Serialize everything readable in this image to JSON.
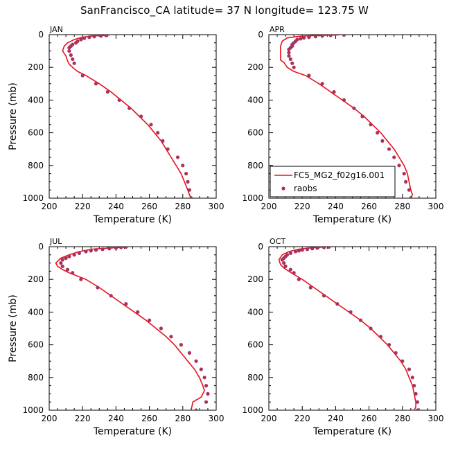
{
  "title": "SanFrancisco_CA  latitude= 37 N longitude= 123.75 W",
  "colors": {
    "model": "#e8101c",
    "obs": "#a8325e"
  },
  "legend": {
    "model_label": "FC5_MG2_f02g16.001",
    "obs_label": "raobs",
    "placement": "bottom-left of APR panel"
  },
  "chart_data": [
    {
      "type": "line",
      "panel": "JAN",
      "xlabel": "Temperature (K)",
      "ylabel": "Pressure (mb)",
      "xlim": [
        200,
        300
      ],
      "ylim": [
        1000,
        0
      ],
      "xticks": [
        200,
        220,
        240,
        260,
        280,
        300
      ],
      "yticks": [
        0,
        200,
        400,
        600,
        800,
        1000
      ],
      "series": [
        {
          "name": "FC5_MG2_f02g16.001",
          "style": "line",
          "points": [
            [
              236,
              3
            ],
            [
              226,
              8
            ],
            [
              220,
              15
            ],
            [
              215,
              30
            ],
            [
              211,
              50
            ],
            [
              209,
              70
            ],
            [
              208,
              100
            ],
            [
              210,
              130
            ],
            [
              211,
              160
            ],
            [
              212,
              180
            ],
            [
              214,
              200
            ],
            [
              217,
              225
            ],
            [
              222,
              250
            ],
            [
              230,
              300
            ],
            [
              237,
              350
            ],
            [
              243,
              400
            ],
            [
              249,
              450
            ],
            [
              254,
              500
            ],
            [
              259,
              550
            ],
            [
              263,
              600
            ],
            [
              267,
              650
            ],
            [
              270,
              700
            ],
            [
              273,
              750
            ],
            [
              276,
              800
            ],
            [
              279,
              850
            ],
            [
              281,
              900
            ],
            [
              283,
              950
            ],
            [
              284,
              980
            ],
            [
              285,
              1000
            ]
          ]
        },
        {
          "name": "raobs",
          "style": "markers",
          "points": [
            [
              234,
              5
            ],
            [
              231,
              8
            ],
            [
              227,
              12
            ],
            [
              224,
              16
            ],
            [
              221,
              22
            ],
            [
              219,
              30
            ],
            [
              217,
              40
            ],
            [
              216,
              50
            ],
            [
              214,
              60
            ],
            [
              213,
              70
            ],
            [
              212,
              80
            ],
            [
              212,
              100
            ],
            [
              213,
              125
            ],
            [
              214,
              150
            ],
            [
              215,
              175
            ],
            [
              220,
              250
            ],
            [
              228,
              300
            ],
            [
              235,
              350
            ],
            [
              242,
              400
            ],
            [
              248,
              450
            ],
            [
              255,
              500
            ],
            [
              261,
              550
            ],
            [
              265,
              600
            ],
            [
              268,
              650
            ],
            [
              271,
              700
            ],
            [
              277,
              750
            ],
            [
              280,
              800
            ],
            [
              282,
              850
            ],
            [
              283,
              900
            ],
            [
              284,
              950
            ],
            [
              285,
              1000
            ]
          ]
        }
      ]
    },
    {
      "type": "line",
      "panel": "APR",
      "xlabel": "Temperature (K)",
      "ylabel": "",
      "xlim": [
        200,
        300
      ],
      "ylim": [
        1000,
        0
      ],
      "xticks": [
        200,
        220,
        240,
        260,
        280,
        300
      ],
      "yticks": [
        0,
        200,
        400,
        600,
        800,
        1000
      ],
      "series": [
        {
          "name": "FC5_MG2_f02g16.001",
          "style": "line",
          "points": [
            [
              242,
              2
            ],
            [
              228,
              5
            ],
            [
              218,
              10
            ],
            [
              211,
              20
            ],
            [
              208,
              40
            ],
            [
              207,
              70
            ],
            [
              207,
              100
            ],
            [
              207,
              130
            ],
            [
              207,
              155
            ],
            [
              209,
              170
            ],
            [
              211,
              200
            ],
            [
              215,
              225
            ],
            [
              222,
              250
            ],
            [
              230,
              300
            ],
            [
              237,
              350
            ],
            [
              244,
              400
            ],
            [
              251,
              450
            ],
            [
              257,
              500
            ],
            [
              262,
              550
            ],
            [
              267,
              600
            ],
            [
              271,
              650
            ],
            [
              275,
              700
            ],
            [
              278,
              750
            ],
            [
              281,
              800
            ],
            [
              283,
              850
            ],
            [
              284,
              900
            ],
            [
              285,
              950
            ],
            [
              286,
              980
            ],
            [
              285,
              1000
            ]
          ]
        },
        {
          "name": "raobs",
          "style": "markers",
          "points": [
            [
              245,
              2
            ],
            [
              237,
              5
            ],
            [
              232,
              8
            ],
            [
              228,
              12
            ],
            [
              224,
              16
            ],
            [
              221,
              20
            ],
            [
              219,
              25
            ],
            [
              217,
              30
            ],
            [
              216,
              40
            ],
            [
              215,
              50
            ],
            [
              214,
              60
            ],
            [
              214,
              70
            ],
            [
              213,
              80
            ],
            [
              212,
              90
            ],
            [
              212,
              110
            ],
            [
              212,
              130
            ],
            [
              213,
              150
            ],
            [
              214,
              175
            ],
            [
              215,
              200
            ],
            [
              224,
              250
            ],
            [
              232,
              300
            ],
            [
              239,
              350
            ],
            [
              245,
              400
            ],
            [
              251,
              450
            ],
            [
              256,
              500
            ],
            [
              261,
              550
            ],
            [
              265,
              600
            ],
            [
              268,
              650
            ],
            [
              272,
              700
            ],
            [
              275,
              750
            ],
            [
              278,
              800
            ],
            [
              281,
              850
            ],
            [
              282,
              900
            ],
            [
              284,
              950
            ],
            [
              285,
              1000
            ]
          ]
        }
      ]
    },
    {
      "type": "line",
      "panel": "JUL",
      "xlabel": "Temperature (K)",
      "ylabel": "Pressure (mb)",
      "xlim": [
        200,
        300
      ],
      "ylim": [
        1000,
        0
      ],
      "xticks": [
        200,
        220,
        240,
        260,
        280,
        300
      ],
      "yticks": [
        0,
        200,
        400,
        600,
        800,
        1000
      ],
      "series": [
        {
          "name": "FC5_MG2_f02g16.001",
          "style": "line",
          "points": [
            [
              246,
              3
            ],
            [
              236,
              8
            ],
            [
              226,
              15
            ],
            [
              218,
              30
            ],
            [
              212,
              50
            ],
            [
              207,
              70
            ],
            [
              204,
              100
            ],
            [
              205,
              120
            ],
            [
              208,
              140
            ],
            [
              212,
              160
            ],
            [
              217,
              180
            ],
            [
              222,
              200
            ],
            [
              230,
              250
            ],
            [
              237,
              300
            ],
            [
              244,
              350
            ],
            [
              251,
              400
            ],
            [
              258,
              450
            ],
            [
              264,
              500
            ],
            [
              270,
              550
            ],
            [
              275,
              600
            ],
            [
              279,
              650
            ],
            [
              283,
              700
            ],
            [
              287,
              750
            ],
            [
              290,
              800
            ],
            [
              292,
              850
            ],
            [
              293,
              880
            ],
            [
              291,
              920
            ],
            [
              286,
              950
            ],
            [
              285,
              1000
            ]
          ]
        },
        {
          "name": "raobs",
          "style": "markers",
          "points": [
            [
              246,
              2
            ],
            [
              243,
              5
            ],
            [
              240,
              8
            ],
            [
              236,
              12
            ],
            [
              232,
              16
            ],
            [
              228,
              20
            ],
            [
              225,
              25
            ],
            [
              222,
              30
            ],
            [
              218,
              40
            ],
            [
              215,
              50
            ],
            [
              212,
              60
            ],
            [
              210,
              70
            ],
            [
              208,
              80
            ],
            [
              207,
              100
            ],
            [
              208,
              120
            ],
            [
              211,
              140
            ],
            [
              214,
              160
            ],
            [
              219,
              200
            ],
            [
              229,
              250
            ],
            [
              237,
              300
            ],
            [
              246,
              350
            ],
            [
              253,
              400
            ],
            [
              260,
              450
            ],
            [
              267,
              500
            ],
            [
              273,
              550
            ],
            [
              279,
              600
            ],
            [
              284,
              650
            ],
            [
              288,
              700
            ],
            [
              291,
              750
            ],
            [
              293,
              800
            ],
            [
              294,
              850
            ],
            [
              295,
              900
            ],
            [
              294,
              950
            ],
            [
              288,
              1000
            ]
          ]
        }
      ]
    },
    {
      "type": "line",
      "panel": "OCT",
      "xlabel": "Temperature (K)",
      "ylabel": "",
      "xlim": [
        200,
        300
      ],
      "ylim": [
        1000,
        0
      ],
      "xticks": [
        200,
        220,
        240,
        260,
        280,
        300
      ],
      "yticks": [
        0,
        200,
        400,
        600,
        800,
        1000
      ],
      "series": [
        {
          "name": "FC5_MG2_f02g16.001",
          "style": "line",
          "points": [
            [
              232,
              3
            ],
            [
              224,
              8
            ],
            [
              218,
              15
            ],
            [
              212,
              30
            ],
            [
              208,
              50
            ],
            [
              206,
              80
            ],
            [
              207,
              110
            ],
            [
              209,
              130
            ],
            [
              212,
              150
            ],
            [
              215,
              170
            ],
            [
              220,
              200
            ],
            [
              227,
              250
            ],
            [
              234,
              300
            ],
            [
              241,
              350
            ],
            [
              248,
              400
            ],
            [
              255,
              450
            ],
            [
              261,
              500
            ],
            [
              266,
              550
            ],
            [
              271,
              600
            ],
            [
              275,
              650
            ],
            [
              279,
              700
            ],
            [
              282,
              750
            ],
            [
              284,
              800
            ],
            [
              286,
              850
            ],
            [
              287,
              900
            ],
            [
              288,
              950
            ],
            [
              288,
              980
            ],
            [
              287,
              1000
            ]
          ]
        },
        {
          "name": "raobs",
          "style": "markers",
          "points": [
            [
              236,
              2
            ],
            [
              233,
              5
            ],
            [
              229,
              8
            ],
            [
              226,
              12
            ],
            [
              223,
              16
            ],
            [
              220,
              20
            ],
            [
              218,
              25
            ],
            [
              216,
              30
            ],
            [
              213,
              40
            ],
            [
              211,
              50
            ],
            [
              210,
              60
            ],
            [
              209,
              70
            ],
            [
              208,
              80
            ],
            [
              209,
              100
            ],
            [
              210,
              120
            ],
            [
              213,
              140
            ],
            [
              215,
              160
            ],
            [
              218,
              200
            ],
            [
              225,
              250
            ],
            [
              233,
              300
            ],
            [
              241,
              350
            ],
            [
              249,
              400
            ],
            [
              255,
              450
            ],
            [
              261,
              500
            ],
            [
              267,
              550
            ],
            [
              272,
              600
            ],
            [
              276,
              650
            ],
            [
              280,
              700
            ],
            [
              284,
              750
            ],
            [
              286,
              800
            ],
            [
              287,
              850
            ],
            [
              288,
              900
            ],
            [
              289,
              950
            ],
            [
              289,
              1000
            ]
          ]
        }
      ]
    }
  ]
}
